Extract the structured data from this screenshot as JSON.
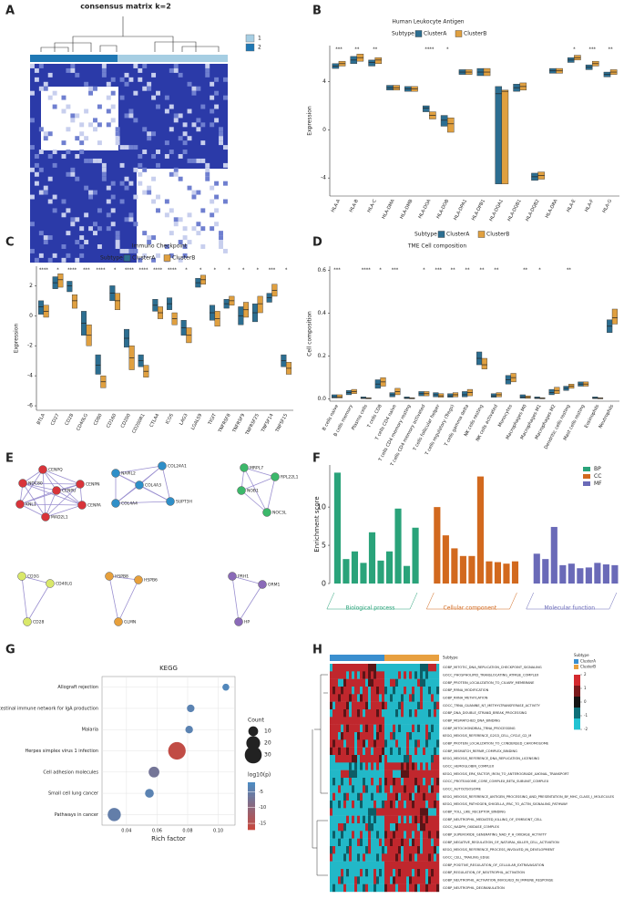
{
  "chart_data": [
    {
      "panel": "A",
      "type": "heatmap",
      "title": "consensus matrix k=2",
      "legend": [
        "1",
        "2"
      ],
      "colors": [
        "#a6cee3",
        "#1f78b4"
      ]
    },
    {
      "panel": "B",
      "type": "box",
      "title": "Human Leukocyte Antigen",
      "legend_title": "Subtype",
      "ylabel": "Expression",
      "categories": [
        "HLA-A",
        "HLA-B",
        "HLA-C",
        "HLA-DMA",
        "HLA-DMB",
        "HLA-DOA",
        "HLA-DOB",
        "HLA-DPA1",
        "HLA-DPB1",
        "HLA-DQA1",
        "HLA-DQB1",
        "HLA-DQB2",
        "HLA-DRA",
        "HLA-E",
        "HLA-F",
        "HLA-G"
      ],
      "annotations": [
        "***",
        "**",
        "**",
        null,
        null,
        "****",
        "*",
        null,
        null,
        null,
        null,
        null,
        null,
        "*",
        "***",
        "**"
      ],
      "ylim": [
        -5.5,
        7
      ],
      "yticks": [
        -4,
        0,
        4
      ],
      "series": [
        {
          "name": "ClusterA",
          "color": "#2c6e91",
          "median": [
            5.3,
            5.8,
            5.6,
            3.5,
            3.4,
            1.8,
            0.8,
            4.8,
            4.8,
            3.0,
            3.5,
            -3.9,
            4.9,
            5.8,
            5.2,
            4.6
          ],
          "q1": [
            5.1,
            5.5,
            5.3,
            3.3,
            3.2,
            1.5,
            0.3,
            4.6,
            4.5,
            -4.5,
            3.2,
            -4.2,
            4.7,
            5.6,
            5.0,
            4.4
          ],
          "q3": [
            5.5,
            6.1,
            5.8,
            3.7,
            3.6,
            2.0,
            1.2,
            5.0,
            5.1,
            3.6,
            3.8,
            -3.6,
            5.1,
            6.0,
            5.4,
            4.8
          ]
        },
        {
          "name": "ClusterB",
          "color": "#e0a040",
          "median": [
            5.5,
            6.0,
            5.8,
            3.5,
            3.4,
            1.2,
            0.5,
            4.8,
            4.8,
            3.2,
            3.6,
            -3.8,
            4.9,
            6.0,
            5.5,
            4.8
          ],
          "q1": [
            5.3,
            5.7,
            5.5,
            3.3,
            3.2,
            0.9,
            -0.2,
            4.6,
            4.5,
            -4.5,
            3.3,
            -4.1,
            4.7,
            5.8,
            5.3,
            4.6
          ],
          "q3": [
            5.7,
            6.3,
            6.0,
            3.7,
            3.6,
            1.5,
            1.0,
            5.0,
            5.1,
            3.3,
            3.9,
            -3.5,
            5.1,
            6.2,
            5.7,
            5.0
          ]
        }
      ]
    },
    {
      "panel": "C",
      "type": "box",
      "title": "Immuno Checkpoint",
      "legend_title": "Subtype",
      "ylabel": "Expression",
      "categories": [
        "BTLA",
        "CD27",
        "CD28",
        "CD40LG",
        "CD80",
        "CD160",
        "CD200",
        "CD200R1",
        "CTLA4",
        "ICOS",
        "LAG3",
        "LGALS9",
        "TIGIT",
        "TNFRSF8",
        "TNFRSF9",
        "TNFRSF25",
        "TNFSF14",
        "TNFSF15"
      ],
      "annotations": [
        "****",
        "*",
        "****",
        "***",
        "****",
        "*",
        "****",
        "****",
        "****",
        "****",
        "*",
        "*",
        "*",
        "*",
        "*",
        "*",
        "***",
        "*"
      ],
      "ylim": [
        -6.3,
        3.3
      ],
      "yticks": [
        -6,
        -4,
        -2,
        0,
        2
      ],
      "series": [
        {
          "name": "ClusterA",
          "color": "#2c6e91",
          "median": [
            0.6,
            2.2,
            2.0,
            -0.5,
            -3.3,
            1.5,
            -1.5,
            -3.0,
            0.7,
            0.8,
            -0.8,
            2.2,
            0.2,
            0.8,
            0.0,
            0.2,
            1.2,
            -3.0
          ],
          "q1": [
            0.1,
            1.8,
            1.6,
            -1.3,
            -3.9,
            1.0,
            -2.1,
            -3.4,
            0.3,
            0.4,
            -1.3,
            1.9,
            -0.3,
            0.5,
            -0.6,
            -0.4,
            0.9,
            -3.4
          ],
          "q3": [
            1.0,
            2.6,
            2.3,
            0.3,
            -2.6,
            2.0,
            -0.9,
            -2.6,
            1.1,
            1.2,
            -0.3,
            2.5,
            0.7,
            1.1,
            0.6,
            0.8,
            1.5,
            -2.6
          ]
        },
        {
          "name": "ClusterB",
          "color": "#e0a040",
          "median": [
            0.3,
            2.4,
            1.0,
            -1.3,
            -4.4,
            1.0,
            -2.8,
            -3.7,
            0.2,
            -0.2,
            -1.3,
            2.4,
            -0.2,
            1.0,
            0.4,
            0.8,
            1.7,
            -3.5
          ],
          "q1": [
            -0.1,
            1.9,
            0.5,
            -2.0,
            -4.8,
            0.4,
            -3.6,
            -4.1,
            -0.2,
            -0.6,
            -1.8,
            2.1,
            -0.7,
            0.7,
            -0.1,
            0.2,
            1.3,
            -3.9
          ],
          "q3": [
            0.7,
            2.8,
            1.4,
            -0.6,
            -4.0,
            1.5,
            -2.0,
            -3.3,
            0.6,
            0.2,
            -0.8,
            2.7,
            0.3,
            1.3,
            0.9,
            1.3,
            2.1,
            -3.1
          ]
        }
      ]
    },
    {
      "panel": "D",
      "type": "box",
      "title": "TME Cell composition",
      "legend_title": "Subtype",
      "ylabel": "Cell composition",
      "categories": [
        "B cells naive",
        "B cells memory",
        "Plasma cells",
        "T cells CD8",
        "T cells CD4 naive",
        "T cells CD4 memory resting",
        "T cells CD4 memory activated",
        "T cells follicular helper",
        "T cells regulatory (Tregs)",
        "T cells gamma delta",
        "NK cells resting",
        "NK cells activated",
        "Monocytes",
        "Macrophages M0",
        "Macrophages M1",
        "Macrophages M2",
        "Dendritic cells resting",
        "Mast cells resting",
        "Eosinophils",
        "Neutrophils"
      ],
      "annotations": [
        "***",
        null,
        "****",
        "*",
        "***",
        null,
        "*",
        "***",
        "**",
        "**",
        "**",
        "**",
        null,
        "**",
        "*",
        null,
        "**",
        null,
        null,
        null
      ],
      "ylim": [
        -0.01,
        0.62
      ],
      "yticks": [
        {
          "value": 0,
          "label": "0.0"
        },
        0.2,
        0.4,
        0.6
      ],
      "series": [
        {
          "name": "ClusterA",
          "color": "#2c6e91",
          "median": [
            0.01,
            0.03,
            0.005,
            0.07,
            0.02,
            0.005,
            0.025,
            0.02,
            0.015,
            0.02,
            0.19,
            0.015,
            0.09,
            0.01,
            0.005,
            0.03,
            0.05,
            0.07,
            0.005,
            0.34
          ],
          "q1": [
            0.005,
            0.02,
            0.002,
            0.05,
            0.01,
            0.002,
            0.015,
            0.01,
            0.008,
            0.01,
            0.16,
            0.008,
            0.07,
            0.004,
            0.002,
            0.02,
            0.04,
            0.06,
            0.002,
            0.31
          ],
          "q3": [
            0.02,
            0.04,
            0.01,
            0.09,
            0.03,
            0.01,
            0.035,
            0.03,
            0.025,
            0.035,
            0.22,
            0.025,
            0.11,
            0.02,
            0.01,
            0.045,
            0.06,
            0.08,
            0.01,
            0.37
          ]
        },
        {
          "name": "ClusterB",
          "color": "#e0a040",
          "median": [
            0.01,
            0.035,
            0.003,
            0.08,
            0.035,
            0.003,
            0.025,
            0.015,
            0.02,
            0.03,
            0.16,
            0.02,
            0.1,
            0.008,
            0.003,
            0.04,
            0.06,
            0.07,
            0.003,
            0.38
          ],
          "q1": [
            0.005,
            0.025,
            0.001,
            0.06,
            0.02,
            0.001,
            0.015,
            0.008,
            0.01,
            0.015,
            0.14,
            0.01,
            0.08,
            0.003,
            0.001,
            0.025,
            0.05,
            0.06,
            0.001,
            0.35
          ],
          "q3": [
            0.02,
            0.045,
            0.006,
            0.1,
            0.05,
            0.006,
            0.035,
            0.025,
            0.03,
            0.045,
            0.19,
            0.03,
            0.12,
            0.015,
            0.006,
            0.055,
            0.07,
            0.08,
            0.006,
            0.42
          ]
        }
      ]
    },
    {
      "panel": "E",
      "type": "network",
      "groups": [
        {
          "color": "#d8343a",
          "nodes": [
            "CENPQ",
            "NDC80",
            "CENPN",
            "CENPU",
            "KNL1",
            "CENPA",
            "MAD2L1"
          ]
        },
        {
          "color": "#2f8fc8",
          "nodes": [
            "NAPIL2",
            "COL24A1",
            "COL4A3",
            "COL4A4",
            "SUPT3H"
          ]
        },
        {
          "color": "#3cb86a",
          "nodes": [
            "MRPL7",
            "RPL22L1",
            "NOB1",
            "NOC3L"
          ]
        },
        {
          "color": "#d9e86a",
          "nodes": [
            "CD3G",
            "CD40LG",
            "CD28"
          ]
        },
        {
          "color": "#e7a03c",
          "nodes": [
            "HSPB8",
            "HSPB6",
            "GLMN"
          ]
        },
        {
          "color": "#8a6ab8",
          "nodes": [
            "PRH1",
            "ORM1",
            "HP"
          ]
        }
      ]
    },
    {
      "panel": "F",
      "type": "bar",
      "ylabel": "Enrichment score",
      "ylim": [
        0,
        15.5
      ],
      "yticks": [
        0,
        5,
        10
      ],
      "groups": [
        "Biological process",
        "Cellular component",
        "Molecular function"
      ],
      "series": [
        {
          "name": "BP",
          "color": "#2aa37a",
          "values": [
            14.5,
            3.2,
            4.2,
            2.7,
            6.7,
            3.0,
            4.2,
            9.8,
            2.3,
            7.3
          ]
        },
        {
          "name": "CC",
          "color": "#d2691e",
          "values": [
            10,
            6.3,
            4.6,
            3.6,
            3.6,
            14,
            2.9,
            2.8,
            2.6,
            2.9
          ]
        },
        {
          "name": "MF",
          "color": "#6a6ab8",
          "values": [
            3.9,
            3.2,
            7.4,
            2.4,
            2.6,
            2.0,
            2.1,
            2.7,
            2.5,
            2.4
          ]
        }
      ]
    },
    {
      "panel": "G",
      "type": "dot",
      "title": "KEGG",
      "xlabel": "Rich factor",
      "categories": [
        "Allograft rejection",
        "Intestinal immune network for IgA production",
        "Malaria",
        "Herpes simplex virus 1 infection",
        "Cell adhesion molecules",
        "Small cell lung cancer",
        "Pathways in cancer"
      ],
      "x": [
        0.105,
        0.082,
        0.081,
        0.073,
        0.058,
        0.055,
        0.032
      ],
      "count": [
        5,
        6,
        6,
        32,
        12,
        8,
        18
      ],
      "log10p": [
        -3,
        -4,
        -4,
        -16,
        -7,
        -4,
        -5
      ],
      "xlim": [
        0.024,
        0.111
      ],
      "xticks": [
        0.04,
        0.06,
        0.08,
        {
          "value": 0.1,
          "label": "0.10"
        }
      ],
      "size_title": "Count",
      "size_ticks": [
        10,
        20,
        30
      ],
      "color_title": "log10(p)",
      "color_ticks": [
        -5,
        -10,
        -15
      ],
      "colorlim": [
        -17,
        -2
      ],
      "color_low": "#c9473c",
      "color_high": "#4a8cc4"
    },
    {
      "panel": "H",
      "type": "heatmap",
      "legend_title": "Subtype",
      "legend": [
        "ClusterA",
        "ClusterB"
      ],
      "colors": [
        "#3a8fcf",
        "#e8a040"
      ],
      "color_ticks": [
        2,
        1,
        0,
        -1,
        -2
      ],
      "rows": [
        "GOBP_MITOTIC_DNA_REPLICATION_CHECKPOINT_SIGNALING",
        "GOCC_PHOSPHOLIPID_TRANSLOCATING_ATPASE_COMPLEX",
        "GOBP_PROTEIN_LOCALIZATION_TO_CILIARY_MEMBRANE",
        "GOBP_RRNA_MODIFICATION",
        "GOBP_RRNA_METHYLATION",
        "GOCC_TRNA_GUANINE_N7_METHYLTRANSFERASE_ACTIVITY",
        "GOBP_DNA_DOUBLE_STRAND_BREAK_PROCESSING",
        "GOBP_MISMATCHED_DNA_BINDING",
        "GOBP_MITOCHONDRIAL_TRNA_PROCESSING",
        "KEGG_MEIOSIS_REFERENCE_G2G3_CELL_CYCLE_G2_M",
        "GOBP_PROTEIN_LOCALIZATION_TO_CONDENSED_CHROMOSOME",
        "GOBP_MISMATCH_REPAIR_COMPLEX_BINDING",
        "KEGG_MEIOSIS_REFERENCE_DNA_REPLICATION_LICENSING",
        "GOCC_HEMOGLOBIN_COMPLEX",
        "KEGG_MEIOSIS_ERK_FACTOR_IRON_TO_ANTEROGRADE_AXONAL_TRANSPORT",
        "GOCC_PROTEASOME_CORE_COMPLEX_BETA_SUBUNIT_COMPLEX",
        "GOCC_AUTOLYSOSOME",
        "KEGG_MEIOSIS_REFERENCE_ANTIGEN_PROCESSING_AND_PRESENTATION_BY_MHC_CLASS_I_MOLECULES",
        "KEGG_MEIOSIS_PATHOGEN_SHIGELLA_IPAC_TO_ACTIN_SIGNALING_PATHWAY",
        "GOBP_TOLL_LIKE_RECEPTOR_BINDING",
        "GOBP_NEUTROPHIL_MEDIATED_KILLING_OF_SYMBIONT_CELL",
        "GOCC_NADPH_OXIDASE_COMPLEX",
        "GOBP_SUPEROXIDE_GENERATING_NAD_P_H_OXIDASE_ACTIVITY",
        "GOBP_NEGATIVE_REGULATION_OF_NATURAL_KILLER_CELL_ACTIVATION",
        "KEGG_MEIOSIS_REFERENCE_PROCESS_INVOLVED_IN_DEVELOPMENT",
        "GOCC_CELL_TRAILING_EDGE",
        "GOBP_POSITIVE_REGULATION_OF_CELLULAR_EXTRAVASATION",
        "GOBP_REGULATION_OF_NEUTROPHIL_ACTIVATION",
        "GOBP_NEUTROPHIL_ACTIVATION_INVOLVED_IN_IMMUNE_RESPONSE",
        "GOBP_NEUTROPHIL_DEGRANULATION"
      ]
    }
  ]
}
